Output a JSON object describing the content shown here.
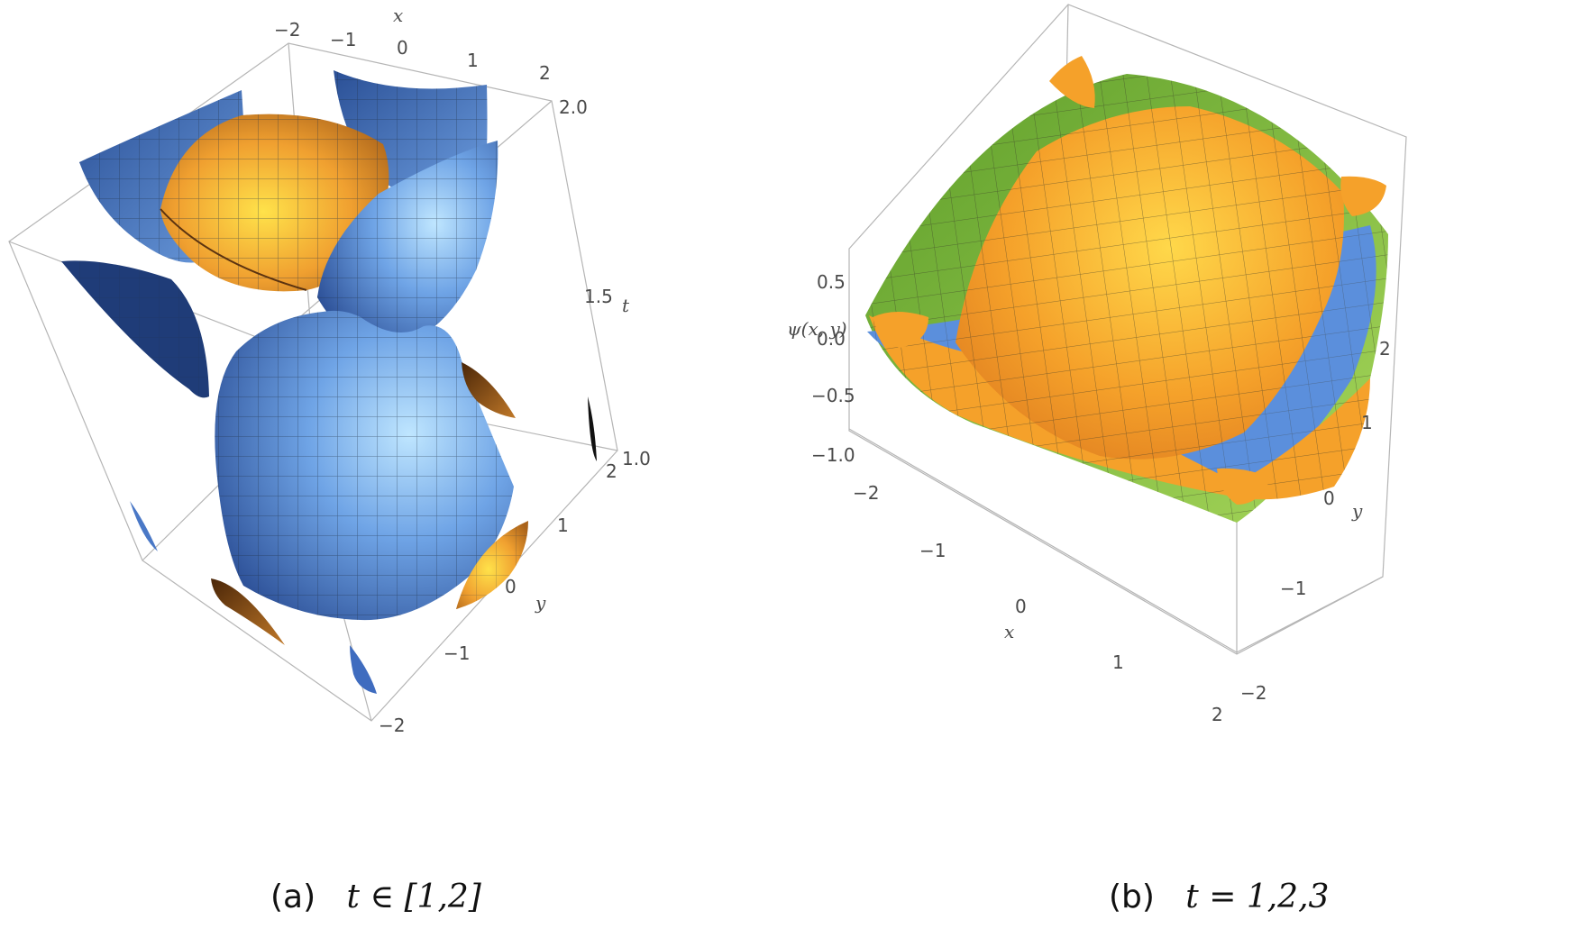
{
  "panel_a": {
    "caption_prefix": "(a)",
    "caption_math": "t ∈ [1,2]",
    "x_axis": {
      "label": "x",
      "ticks": [
        "−2",
        "−1",
        "0",
        "1",
        "2"
      ]
    },
    "y_axis": {
      "label": "y",
      "ticks": [
        "−2",
        "−1",
        "0",
        "1",
        "2"
      ]
    },
    "t_axis": {
      "label": "t",
      "ticks": [
        "1.0",
        "1.5",
        "2.0"
      ]
    },
    "colors": {
      "blue": "#5b8fdc",
      "blue_dark": "#1e3f78",
      "orange": "#f0a030",
      "brown": "#6a3a12"
    }
  },
  "panel_b": {
    "caption_prefix": "(b)",
    "caption_math": "t = 1,2,3",
    "z_axis": {
      "label": "ψ(x, y)",
      "ticks": [
        "0.5",
        "0.0",
        "−0.5",
        "−1.0"
      ]
    },
    "x_axis": {
      "label": "x",
      "ticks": [
        "−2",
        "−1",
        "0",
        "1",
        "2"
      ]
    },
    "y_axis": {
      "label": "y",
      "ticks": [
        "−2",
        "−1",
        "0",
        "1",
        "2"
      ]
    },
    "colors": {
      "green": "#7cbf3a",
      "orange": "#f5a12a",
      "blue": "#4f86d6"
    }
  }
}
